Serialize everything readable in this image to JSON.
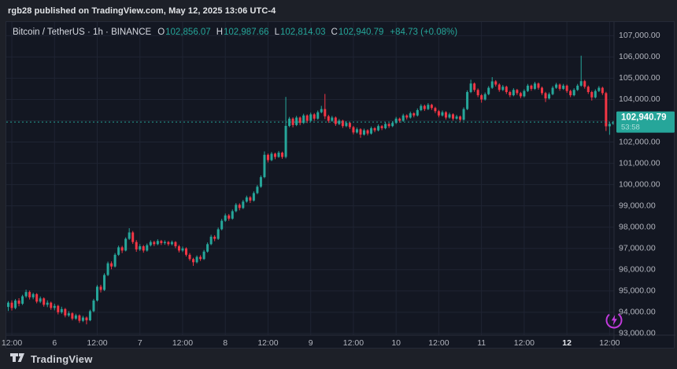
{
  "attribution": {
    "text": "rgb28 published on TradingView.com, May 12, 2025 13:06 UTC-4"
  },
  "footer": {
    "brand": "TradingView"
  },
  "legend": {
    "title": "Bitcoin / TetherUS · 1h · BINANCE",
    "ohlc": [
      {
        "k": "O",
        "v": "102,856.07"
      },
      {
        "k": "H",
        "v": "102,987.66"
      },
      {
        "k": "L",
        "v": "102,814.03"
      },
      {
        "k": "C",
        "v": "102,940.79"
      }
    ],
    "change": "+84.73 (+0.08%)"
  },
  "price_scale": {
    "last_price_label": "102,940.79",
    "countdown": "53:58",
    "ticks": [
      {
        "value": 107000,
        "label": "107,000.00"
      },
      {
        "value": 106000,
        "label": "106,000.00"
      },
      {
        "value": 105000,
        "label": "105,000.00"
      },
      {
        "value": 104000,
        "label": "104,000.00"
      },
      {
        "value": 103000,
        "label": "103,000.00"
      },
      {
        "value": 102000,
        "label": "102,000.00"
      },
      {
        "value": 101000,
        "label": "101,000.00"
      },
      {
        "value": 100000,
        "label": "100,000.00"
      },
      {
        "value": 99000,
        "label": "99,000.00"
      },
      {
        "value": 98000,
        "label": "98,000.00"
      },
      {
        "value": 97000,
        "label": "97,000.00"
      },
      {
        "value": 96000,
        "label": "96,000.00"
      },
      {
        "value": 95000,
        "label": "95,000.00"
      },
      {
        "value": 94000,
        "label": "94,000.00"
      },
      {
        "value": 93000,
        "label": "93,000.00"
      }
    ]
  },
  "time_scale": {
    "ticks": [
      {
        "index": 1,
        "label": "12:00",
        "strong": false
      },
      {
        "index": 13,
        "label": "6",
        "strong": false
      },
      {
        "index": 25,
        "label": "12:00",
        "strong": false
      },
      {
        "index": 37,
        "label": "7",
        "strong": false
      },
      {
        "index": 49,
        "label": "12:00",
        "strong": false
      },
      {
        "index": 61,
        "label": "8",
        "strong": false
      },
      {
        "index": 73,
        "label": "12:00",
        "strong": false
      },
      {
        "index": 85,
        "label": "9",
        "strong": false
      },
      {
        "index": 97,
        "label": "12:00",
        "strong": false
      },
      {
        "index": 109,
        "label": "10",
        "strong": false
      },
      {
        "index": 121,
        "label": "12:00",
        "strong": false
      },
      {
        "index": 133,
        "label": "11",
        "strong": false
      },
      {
        "index": 145,
        "label": "12:00",
        "strong": false
      },
      {
        "index": 157,
        "label": "12",
        "strong": true
      },
      {
        "index": 169,
        "label": "12:00",
        "strong": false
      }
    ]
  },
  "colors": {
    "up": "#26a69a",
    "down": "#f23645",
    "badge": "#26a69a",
    "grid": "#1f2433",
    "axis_line": "#2a2e39",
    "axis_text": "#b2b5be",
    "axis_text_strong": "#e6e8ee",
    "flash_purple": "#c23bdd"
  },
  "chart_data": {
    "type": "candlestick",
    "title": "Bitcoin / TetherUS · 1h · BINANCE",
    "x_unit": "hourly candles, May 5 11:00 through May 12 13:00 (UTC-4)",
    "ylim": [
      92922,
      107530
    ],
    "y_ticks": [
      93000,
      94000,
      95000,
      96000,
      97000,
      98000,
      99000,
      100000,
      101000,
      102000,
      103000,
      104000,
      105000,
      106000,
      107000
    ],
    "last_close": 102940.79,
    "candles": [
      [
        94250,
        94520,
        94060,
        94450
      ],
      [
        94450,
        94560,
        94080,
        94200
      ],
      [
        94200,
        94620,
        94140,
        94550
      ],
      [
        94550,
        94660,
        94280,
        94400
      ],
      [
        94400,
        94820,
        94340,
        94750
      ],
      [
        94750,
        95060,
        94680,
        94950
      ],
      [
        94950,
        95020,
        94600,
        94700
      ],
      [
        94700,
        94920,
        94610,
        94850
      ],
      [
        94850,
        94900,
        94420,
        94500
      ],
      [
        94500,
        94740,
        94430,
        94650
      ],
      [
        94650,
        94700,
        94260,
        94350
      ],
      [
        94350,
        94560,
        94240,
        94450
      ],
      [
        94450,
        94500,
        94110,
        94200
      ],
      [
        94200,
        94400,
        94090,
        94300
      ],
      [
        94300,
        94350,
        93900,
        94000
      ],
      [
        94000,
        94260,
        93930,
        94150
      ],
      [
        94150,
        94200,
        93760,
        93850
      ],
      [
        93850,
        94050,
        93780,
        93950
      ],
      [
        93950,
        94000,
        93620,
        93700
      ],
      [
        93700,
        93930,
        93640,
        93850
      ],
      [
        93850,
        93900,
        93500,
        93600
      ],
      [
        93600,
        93830,
        93540,
        93750
      ],
      [
        93750,
        93800,
        93430,
        93620
      ],
      [
        93620,
        94120,
        93580,
        94050
      ],
      [
        94050,
        94630,
        94000,
        94550
      ],
      [
        94550,
        95280,
        94500,
        95200
      ],
      [
        95200,
        95290,
        94930,
        95050
      ],
      [
        95050,
        95830,
        95000,
        95750
      ],
      [
        95750,
        96380,
        95700,
        96300
      ],
      [
        96300,
        96390,
        96020,
        96150
      ],
      [
        96150,
        96780,
        96100,
        96700
      ],
      [
        96700,
        97130,
        96650,
        97050
      ],
      [
        97050,
        97120,
        96780,
        96900
      ],
      [
        96900,
        97520,
        96860,
        97450
      ],
      [
        97450,
        97950,
        97400,
        97750
      ],
      [
        97750,
        97820,
        97210,
        97300
      ],
      [
        97300,
        97390,
        96840,
        96950
      ],
      [
        96950,
        97200,
        96880,
        97100
      ],
      [
        97100,
        97160,
        96800,
        96900
      ],
      [
        96900,
        97230,
        96850,
        97150
      ],
      [
        97150,
        97380,
        97090,
        97300
      ],
      [
        97300,
        97360,
        97110,
        97200
      ],
      [
        97200,
        97430,
        97150,
        97350
      ],
      [
        97350,
        97400,
        97160,
        97250
      ],
      [
        97250,
        97380,
        97170,
        97300
      ],
      [
        97300,
        97350,
        97120,
        97200
      ],
      [
        97200,
        97370,
        97140,
        97300
      ],
      [
        97300,
        97340,
        97010,
        97100
      ],
      [
        97100,
        97170,
        96810,
        96900
      ],
      [
        96900,
        97090,
        96830,
        97000
      ],
      [
        97000,
        97050,
        96620,
        96700
      ],
      [
        96700,
        96780,
        96420,
        96500
      ],
      [
        96500,
        96560,
        96180,
        96350
      ],
      [
        96350,
        96670,
        96300,
        96600
      ],
      [
        96600,
        96680,
        96410,
        96500
      ],
      [
        96500,
        96930,
        96460,
        96850
      ],
      [
        96850,
        97280,
        96800,
        97200
      ],
      [
        97200,
        97640,
        97150,
        97550
      ],
      [
        97550,
        97620,
        97340,
        97450
      ],
      [
        97450,
        97980,
        97400,
        97900
      ],
      [
        97900,
        98390,
        97850,
        98300
      ],
      [
        98300,
        98640,
        98250,
        98550
      ],
      [
        98550,
        98620,
        98300,
        98400
      ],
      [
        98400,
        98830,
        98350,
        98750
      ],
      [
        98750,
        99130,
        98700,
        99050
      ],
      [
        99050,
        99120,
        98790,
        98900
      ],
      [
        98900,
        99280,
        98850,
        99200
      ],
      [
        99200,
        99480,
        99150,
        99400
      ],
      [
        99400,
        99460,
        99140,
        99250
      ],
      [
        99250,
        99680,
        99200,
        99600
      ],
      [
        99600,
        99980,
        99550,
        99900
      ],
      [
        99900,
        100430,
        99850,
        100350
      ],
      [
        100350,
        101560,
        100300,
        101400
      ],
      [
        101400,
        101460,
        101040,
        101150
      ],
      [
        101150,
        101530,
        101100,
        101450
      ],
      [
        101450,
        101500,
        101190,
        101300
      ],
      [
        101300,
        101580,
        101260,
        101500
      ],
      [
        101500,
        101550,
        101210,
        101300
      ],
      [
        101300,
        104120,
        101230,
        102760
      ],
      [
        102760,
        103180,
        102700,
        103100
      ],
      [
        103100,
        103160,
        102690,
        102800
      ],
      [
        102800,
        103230,
        102750,
        103150
      ],
      [
        103150,
        103200,
        102790,
        102900
      ],
      [
        102900,
        103330,
        102850,
        103250
      ],
      [
        103250,
        103300,
        102890,
        103000
      ],
      [
        103000,
        103380,
        102950,
        103300
      ],
      [
        103300,
        103360,
        103000,
        103100
      ],
      [
        103100,
        103480,
        103050,
        103400
      ],
      [
        103400,
        103700,
        103350,
        103550
      ],
      [
        103550,
        104260,
        103080,
        103210
      ],
      [
        103210,
        103280,
        102900,
        103000
      ],
      [
        103000,
        103230,
        102950,
        103150
      ],
      [
        103150,
        103200,
        102760,
        102850
      ],
      [
        102850,
        103080,
        102800,
        103000
      ],
      [
        103000,
        103050,
        102660,
        102750
      ],
      [
        102750,
        102980,
        102700,
        102900
      ],
      [
        102900,
        102950,
        102610,
        102700
      ],
      [
        102700,
        102760,
        102360,
        102450
      ],
      [
        102450,
        102680,
        102400,
        102600
      ],
      [
        102600,
        102650,
        102200,
        102350
      ],
      [
        102350,
        102630,
        102300,
        102550
      ],
      [
        102550,
        102600,
        102310,
        102400
      ],
      [
        102400,
        102730,
        102350,
        102650
      ],
      [
        102650,
        102700,
        102460,
        102550
      ],
      [
        102550,
        102830,
        102500,
        102750
      ],
      [
        102750,
        102800,
        102560,
        102650
      ],
      [
        102650,
        102930,
        102600,
        102850
      ],
      [
        102850,
        102900,
        102660,
        102750
      ],
      [
        102750,
        102980,
        102700,
        102900
      ],
      [
        102900,
        103180,
        102850,
        103100
      ],
      [
        103100,
        103150,
        102910,
        103000
      ],
      [
        103000,
        103330,
        102950,
        103250
      ],
      [
        103250,
        103300,
        103060,
        103150
      ],
      [
        103150,
        103430,
        103100,
        103350
      ],
      [
        103350,
        103400,
        103160,
        103250
      ],
      [
        103250,
        103580,
        103200,
        103500
      ],
      [
        103500,
        103780,
        103450,
        103700
      ],
      [
        103700,
        103760,
        103460,
        103550
      ],
      [
        103550,
        103830,
        103500,
        103750
      ],
      [
        103750,
        103800,
        103510,
        103600
      ],
      [
        103600,
        103660,
        103360,
        103450
      ],
      [
        103450,
        103510,
        103160,
        103250
      ],
      [
        103250,
        103480,
        103200,
        103400
      ],
      [
        103400,
        103450,
        103060,
        103150
      ],
      [
        103150,
        103380,
        103100,
        103300
      ],
      [
        103300,
        103350,
        103010,
        103100
      ],
      [
        103100,
        103280,
        103050,
        103200
      ],
      [
        103200,
        103250,
        102960,
        103050
      ],
      [
        103050,
        103630,
        103000,
        103550
      ],
      [
        103550,
        104430,
        103500,
        104350
      ],
      [
        104350,
        104930,
        104300,
        104750
      ],
      [
        104750,
        104800,
        104360,
        104450
      ],
      [
        104450,
        104520,
        104110,
        104200
      ],
      [
        104200,
        104260,
        103850,
        104000
      ],
      [
        104000,
        104330,
        103950,
        104250
      ],
      [
        104250,
        104630,
        104200,
        104550
      ],
      [
        104550,
        105050,
        104500,
        104850
      ],
      [
        104850,
        104910,
        104610,
        104700
      ],
      [
        104700,
        104760,
        104360,
        104450
      ],
      [
        104450,
        104680,
        104400,
        104600
      ],
      [
        104600,
        104650,
        104260,
        104350
      ],
      [
        104350,
        104410,
        104110,
        104200
      ],
      [
        104200,
        104530,
        104150,
        104450
      ],
      [
        104450,
        104500,
        104210,
        104300
      ],
      [
        104300,
        104360,
        104060,
        104150
      ],
      [
        104150,
        104480,
        104100,
        104400
      ],
      [
        104400,
        104730,
        104350,
        104650
      ],
      [
        104650,
        104700,
        104410,
        104500
      ],
      [
        104500,
        104830,
        104450,
        104750
      ],
      [
        104750,
        104800,
        104460,
        104550
      ],
      [
        104550,
        104610,
        104210,
        104300
      ],
      [
        104300,
        104360,
        103880,
        104050
      ],
      [
        104050,
        104330,
        104000,
        104250
      ],
      [
        104250,
        104630,
        104200,
        104550
      ],
      [
        104550,
        104780,
        104500,
        104700
      ],
      [
        104700,
        104750,
        104410,
        104500
      ],
      [
        104500,
        104730,
        104450,
        104650
      ],
      [
        104650,
        104700,
        104310,
        104400
      ],
      [
        104400,
        104460,
        104110,
        104200
      ],
      [
        104200,
        104530,
        104150,
        104450
      ],
      [
        104450,
        104730,
        104400,
        104650
      ],
      [
        104650,
        106060,
        104600,
        104860
      ],
      [
        104860,
        104920,
        104510,
        104600
      ],
      [
        104600,
        104660,
        104260,
        104350
      ],
      [
        104350,
        104410,
        103950,
        104100
      ],
      [
        104100,
        104480,
        104050,
        104400
      ],
      [
        104400,
        104630,
        104350,
        104550
      ],
      [
        104550,
        104600,
        104210,
        104300
      ],
      [
        104300,
        104360,
        102520,
        102740
      ],
      [
        102740,
        102950,
        102340,
        102856
      ],
      [
        102856.07,
        102987.66,
        102814.03,
        102940.79
      ]
    ]
  }
}
